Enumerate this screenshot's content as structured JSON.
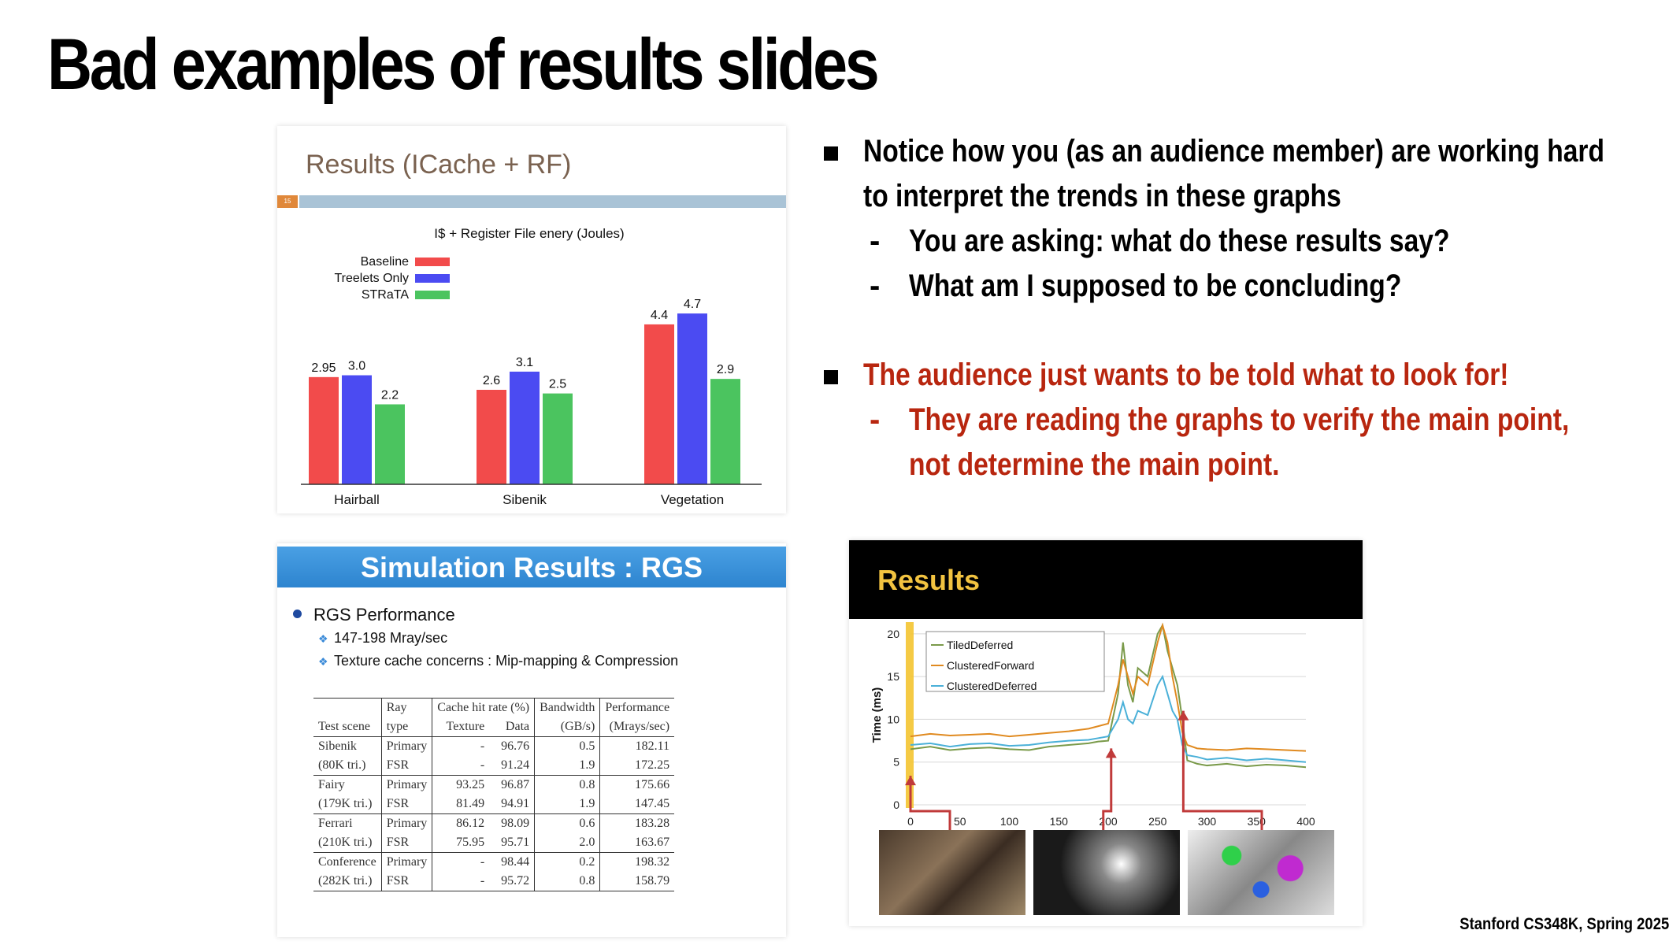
{
  "slide": {
    "title": "Bad examples of results slides",
    "footer": "Stanford CS348K, Spring 2025"
  },
  "bullets": {
    "b1_line1": "Notice how you (as an audience member) are working hard",
    "b1_line2": "to interpret the trends in these graphs",
    "sub1": "You are asking: what do these results say?",
    "sub2": "What am I supposed to be concluding?",
    "b2": "The audience just wants to be told what to look for!",
    "sub3_line1": "They are reading the graphs to verify the main point,",
    "sub3_line2": "not determine the main point.",
    "dash": "-",
    "accent_color": "#b8260f"
  },
  "panel1": {
    "heading": "Results (ICache + RF)",
    "page_num": "15"
  },
  "chart_data": [
    {
      "type": "bar",
      "title": "I$ + Register File enery (Joules)",
      "categories": [
        "Hairball",
        "Sibenik",
        "Vegetation"
      ],
      "series": [
        {
          "name": "Baseline",
          "color": "#f24b4b",
          "values": [
            2.95,
            2.6,
            4.4
          ]
        },
        {
          "name": "Treelets Only",
          "color": "#4b4bf2",
          "values": [
            3.0,
            3.1,
            4.7
          ]
        },
        {
          "name": "STRaTA",
          "color": "#4bc45f",
          "values": [
            2.2,
            2.5,
            2.9
          ]
        }
      ],
      "value_labels": [
        [
          "2.95",
          "2.6",
          "4.4"
        ],
        [
          "3.0",
          "3.1",
          "4.7"
        ],
        [
          "2.2",
          "2.5",
          "2.9"
        ]
      ],
      "ylim": [
        0,
        5.2
      ],
      "legend": "top-left"
    },
    {
      "type": "line",
      "ylabel": "Time (ms)",
      "x_ticks": [
        "0",
        "50",
        "100",
        "150",
        "200",
        "250",
        "300",
        "350",
        "400"
      ],
      "y_ticks": [
        "0",
        "5",
        "10",
        "15",
        "20"
      ],
      "xlim": [
        0,
        400
      ],
      "ylim": [
        0,
        21
      ],
      "legend": "top-left",
      "series": [
        {
          "name": "TiledDeferred",
          "color": "#7a9a4a",
          "x": [
            0,
            20,
            40,
            60,
            80,
            100,
            120,
            140,
            160,
            180,
            190,
            200,
            210,
            215,
            220,
            225,
            230,
            240,
            250,
            255,
            260,
            265,
            270,
            275,
            280,
            290,
            300,
            320,
            340,
            360,
            380,
            400
          ],
          "y": [
            6.5,
            6.8,
            6.4,
            6.6,
            6.7,
            6.5,
            6.4,
            6.8,
            7.0,
            7.2,
            7.4,
            7.5,
            13,
            19,
            14,
            12,
            16,
            15,
            20,
            21,
            18,
            16,
            14,
            10,
            5.2,
            4.8,
            4.6,
            4.8,
            4.5,
            4.7,
            4.6,
            4.4
          ]
        },
        {
          "name": "ClusteredForward",
          "color": "#e08a20",
          "x": [
            0,
            20,
            40,
            60,
            80,
            100,
            120,
            140,
            160,
            180,
            190,
            200,
            210,
            215,
            220,
            225,
            230,
            240,
            250,
            255,
            260,
            265,
            270,
            275,
            280,
            290,
            300,
            320,
            340,
            360,
            380,
            400
          ],
          "y": [
            8.0,
            8.3,
            8.1,
            8.2,
            8.3,
            8.0,
            8.2,
            8.4,
            8.6,
            8.9,
            9.2,
            9.5,
            14,
            17,
            15,
            13,
            15,
            14,
            19,
            21,
            19,
            15,
            12,
            8.5,
            7.0,
            6.6,
            6.5,
            6.4,
            6.6,
            6.5,
            6.4,
            6.3
          ]
        },
        {
          "name": "ClusteredDeferred",
          "color": "#4ab0d8",
          "x": [
            0,
            20,
            40,
            60,
            80,
            100,
            120,
            140,
            160,
            180,
            190,
            200,
            210,
            215,
            220,
            225,
            230,
            240,
            250,
            255,
            260,
            265,
            270,
            275,
            280,
            290,
            300,
            320,
            340,
            360,
            380,
            400
          ],
          "y": [
            7.0,
            7.2,
            6.8,
            7.1,
            7.2,
            6.9,
            7.0,
            7.3,
            7.5,
            7.6,
            7.8,
            8.0,
            10,
            12,
            10,
            9.5,
            11,
            10.5,
            14,
            15,
            13,
            11,
            10,
            7.0,
            5.8,
            5.6,
            5.3,
            5.5,
            5.2,
            5.4,
            5.2,
            5.0
          ]
        }
      ]
    }
  ],
  "panel2": {
    "heading": "Simulation Results : RGS",
    "bullet": "RGS Performance",
    "sub1": "147-198 Mray/sec",
    "sub2": "Texture cache concerns : Mip-mapping & Compression",
    "diamond": "❖",
    "table": {
      "h1": [
        "",
        "Ray",
        "Cache hit rate (%)",
        "",
        "Bandwidth",
        "Performance"
      ],
      "h2": [
        "Test scene",
        "type",
        "Texture",
        "Data",
        "(GB/s)",
        "(Mrays/sec)"
      ],
      "rows": [
        [
          "Sibenik",
          "Primary",
          "-",
          "96.76",
          "0.5",
          "182.11"
        ],
        [
          "(80K tri.)",
          "FSR",
          "-",
          "91.24",
          "1.9",
          "172.25"
        ],
        [
          "Fairy",
          "Primary",
          "93.25",
          "96.87",
          "0.8",
          "175.66"
        ],
        [
          "(179K tri.)",
          "FSR",
          "81.49",
          "94.91",
          "1.9",
          "147.45"
        ],
        [
          "Ferrari",
          "Primary",
          "86.12",
          "98.09",
          "0.6",
          "183.28"
        ],
        [
          "(210K tri.)",
          "FSR",
          "75.95",
          "95.71",
          "2.0",
          "163.67"
        ],
        [
          "Conference",
          "Primary",
          "-",
          "98.44",
          "0.2",
          "198.32"
        ],
        [
          "(282K tri.)",
          "FSR",
          "-",
          "95.72",
          "0.8",
          "158.79"
        ]
      ]
    }
  },
  "panel3": {
    "heading": "Results"
  }
}
